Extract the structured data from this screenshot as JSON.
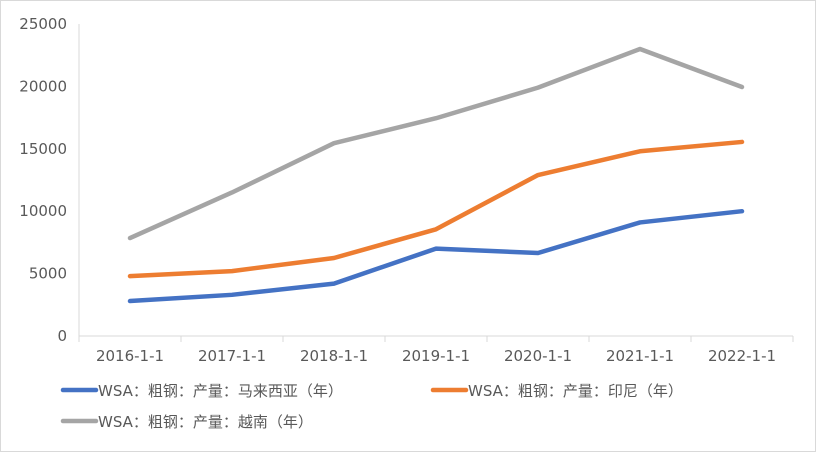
{
  "chart_data": {
    "type": "line",
    "title": "",
    "xlabel": "",
    "ylabel": "",
    "categories": [
      "2016-1-1",
      "2017-1-1",
      "2018-1-1",
      "2019-1-1",
      "2020-1-1",
      "2021-1-1",
      "2022-1-1"
    ],
    "ylim": [
      0,
      25000
    ],
    "yticks": [
      0,
      5000,
      10000,
      15000,
      20000,
      25000
    ],
    "grid": false,
    "legend_position": "bottom",
    "series": [
      {
        "name": "WSA：粗钢：产量：马来西亚（年）",
        "color": "#4472C4",
        "values": [
          2800,
          3300,
          4200,
          7000,
          6650,
          9100,
          10000
        ]
      },
      {
        "name": "WSA：粗钢：产量：印尼（年）",
        "color": "#ED7D31",
        "values": [
          4800,
          5200,
          6250,
          8550,
          12900,
          14800,
          15550
        ]
      },
      {
        "name": "WSA：粗钢：产量：越南（年）",
        "color": "#A5A5A5",
        "values": [
          7850,
          11500,
          15450,
          17450,
          19900,
          23000,
          19950
        ]
      }
    ]
  }
}
